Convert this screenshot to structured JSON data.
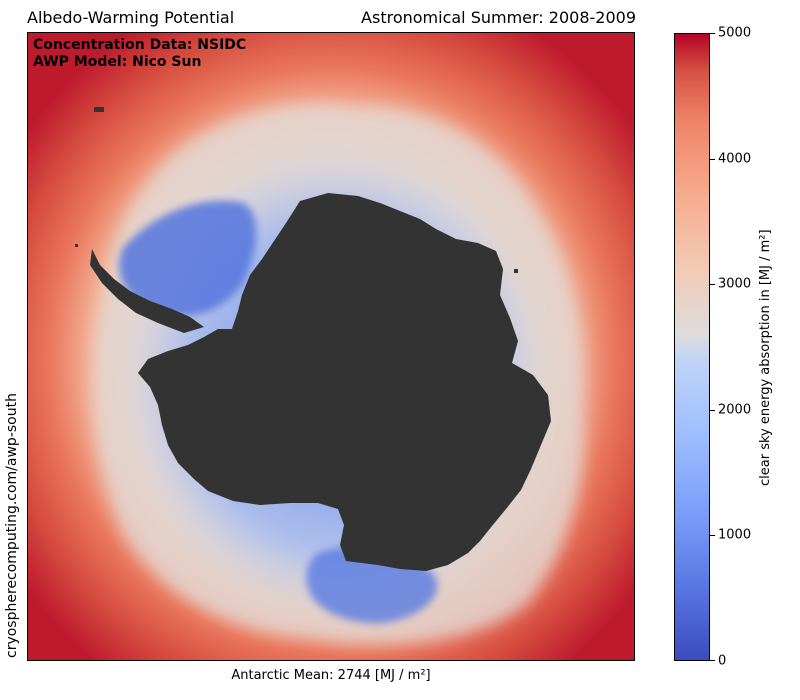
{
  "header": {
    "title_left": "Albedo-Warming Potential",
    "title_right": "Astronomical Summer: 2008-2009"
  },
  "credits": {
    "line1": "Concentration Data: NSIDC",
    "line2": "AWP Model: Nico Sun"
  },
  "side_url": "cryospherecomputing.com/awp-south",
  "bottom_label": "Antarctic Mean: 2744 [MJ / m²]",
  "colorbar": {
    "label": "clear sky energy absorption in [MJ / m²]",
    "ticks": [
      "0",
      "1000",
      "2000",
      "3000",
      "4000",
      "5000"
    ],
    "colormap": "coolwarm",
    "range": [
      0,
      5000
    ]
  },
  "map": {
    "land_color": "#333333",
    "high_color": "#b40426",
    "low_color": "#3b4cc0"
  }
}
